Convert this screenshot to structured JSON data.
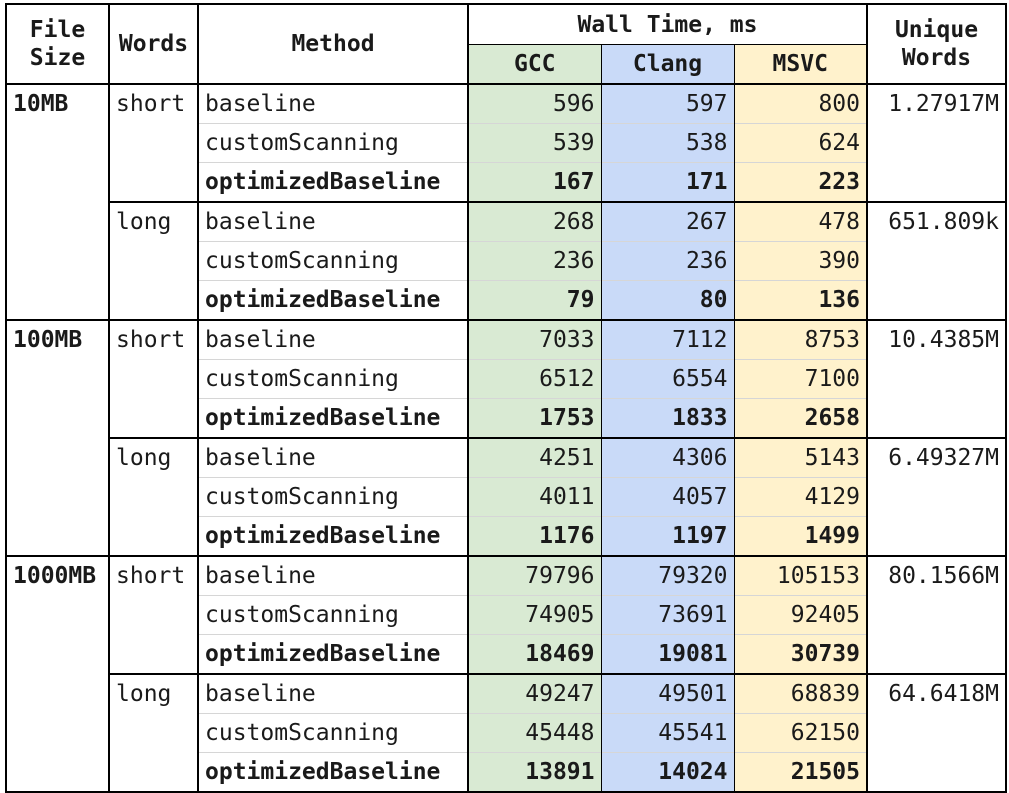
{
  "headers": {
    "file_size": "File Size",
    "words": "Words",
    "method": "Method",
    "wall_time": "Wall Time, ms",
    "unique_words": "Unique Words",
    "compilers": [
      "GCC",
      "Clang",
      "MSVC"
    ]
  },
  "colors": {
    "gcc": "#d9ead3",
    "clang": "#c9daf8",
    "msvc": "#fff2cc"
  },
  "groups": [
    {
      "file_size": "10MB",
      "subgroups": [
        {
          "words": "short",
          "unique": "1.27917M",
          "rows": [
            {
              "method": "baseline",
              "gcc": "596",
              "clang": "597",
              "msvc": "800",
              "bold": false
            },
            {
              "method": "customScanning",
              "gcc": "539",
              "clang": "538",
              "msvc": "624",
              "bold": false
            },
            {
              "method": "optimizedBaseline",
              "gcc": "167",
              "clang": "171",
              "msvc": "223",
              "bold": true
            }
          ]
        },
        {
          "words": "long",
          "unique": "651.809k",
          "rows": [
            {
              "method": "baseline",
              "gcc": "268",
              "clang": "267",
              "msvc": "478",
              "bold": false
            },
            {
              "method": "customScanning",
              "gcc": "236",
              "clang": "236",
              "msvc": "390",
              "bold": false
            },
            {
              "method": "optimizedBaseline",
              "gcc": "79",
              "clang": "80",
              "msvc": "136",
              "bold": true
            }
          ]
        }
      ]
    },
    {
      "file_size": "100MB",
      "subgroups": [
        {
          "words": "short",
          "unique": "10.4385M",
          "rows": [
            {
              "method": "baseline",
              "gcc": "7033",
              "clang": "7112",
              "msvc": "8753",
              "bold": false
            },
            {
              "method": "customScanning",
              "gcc": "6512",
              "clang": "6554",
              "msvc": "7100",
              "bold": false
            },
            {
              "method": "optimizedBaseline",
              "gcc": "1753",
              "clang": "1833",
              "msvc": "2658",
              "bold": true
            }
          ]
        },
        {
          "words": "long",
          "unique": "6.49327M",
          "rows": [
            {
              "method": "baseline",
              "gcc": "4251",
              "clang": "4306",
              "msvc": "5143",
              "bold": false
            },
            {
              "method": "customScanning",
              "gcc": "4011",
              "clang": "4057",
              "msvc": "4129",
              "bold": false
            },
            {
              "method": "optimizedBaseline",
              "gcc": "1176",
              "clang": "1197",
              "msvc": "1499",
              "bold": true
            }
          ]
        }
      ]
    },
    {
      "file_size": "1000MB",
      "subgroups": [
        {
          "words": "short",
          "unique": "80.1566M",
          "rows": [
            {
              "method": "baseline",
              "gcc": "79796",
              "clang": "79320",
              "msvc": "105153",
              "bold": false
            },
            {
              "method": "customScanning",
              "gcc": "74905",
              "clang": "73691",
              "msvc": "92405",
              "bold": false
            },
            {
              "method": "optimizedBaseline",
              "gcc": "18469",
              "clang": "19081",
              "msvc": "30739",
              "bold": true
            }
          ]
        },
        {
          "words": "long",
          "unique": "64.6418M",
          "rows": [
            {
              "method": "baseline",
              "gcc": "49247",
              "clang": "49501",
              "msvc": "68839",
              "bold": false
            },
            {
              "method": "customScanning",
              "gcc": "45448",
              "clang": "45541",
              "msvc": "62150",
              "bold": false
            },
            {
              "method": "optimizedBaseline",
              "gcc": "13891",
              "clang": "14024",
              "msvc": "21505",
              "bold": true
            }
          ]
        }
      ]
    }
  ]
}
